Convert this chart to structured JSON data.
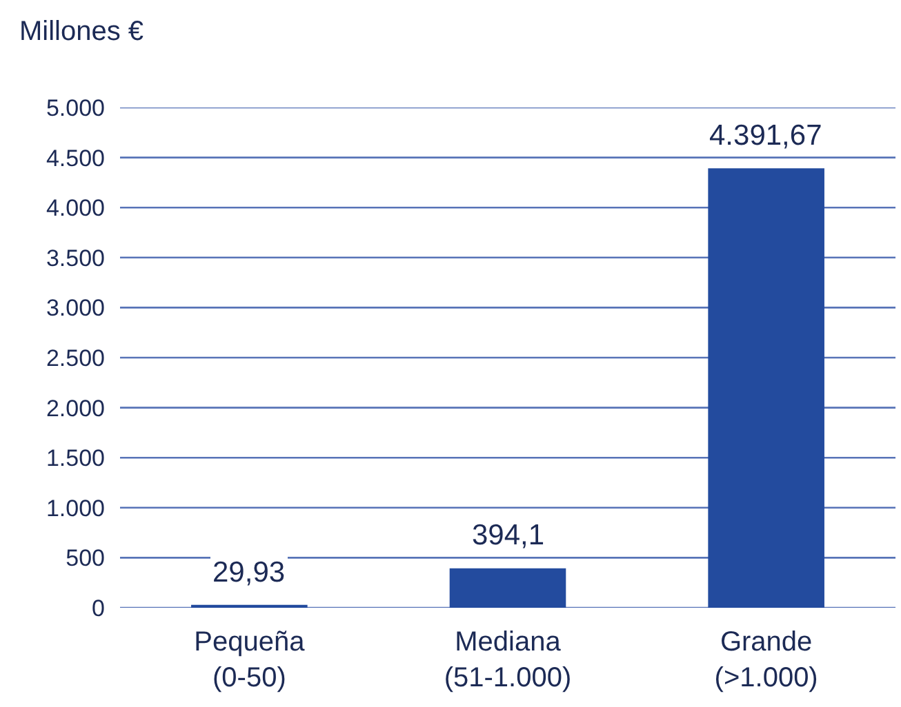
{
  "chart_data": {
    "type": "bar",
    "ylabel": "Millones €",
    "categories": [
      "Pequeña (0-50)",
      "Mediana (51-1.000)",
      "Grande (>1.000)"
    ],
    "values": [
      29.93,
      394.1,
      4391.67
    ],
    "value_labels": [
      "29,93",
      "394,1",
      "4.391,67"
    ],
    "color": "#234b9e",
    "ylim": [
      0,
      5000
    ],
    "yticks": [
      0,
      500,
      {
        "value": 1000,
        "label": "1.000"
      },
      {
        "value": 1500,
        "label": "1.500"
      },
      {
        "value": 2000,
        "label": "2.000"
      },
      {
        "value": 2500,
        "label": "2.500"
      },
      {
        "value": 3000,
        "label": "3.000"
      },
      {
        "value": 3500,
        "label": "3.500"
      },
      {
        "value": 4000,
        "label": "4.000"
      },
      {
        "value": 4500,
        "label": "4.500"
      },
      {
        "value": 5000,
        "label": "5.000"
      }
    ],
    "grid": "y"
  }
}
